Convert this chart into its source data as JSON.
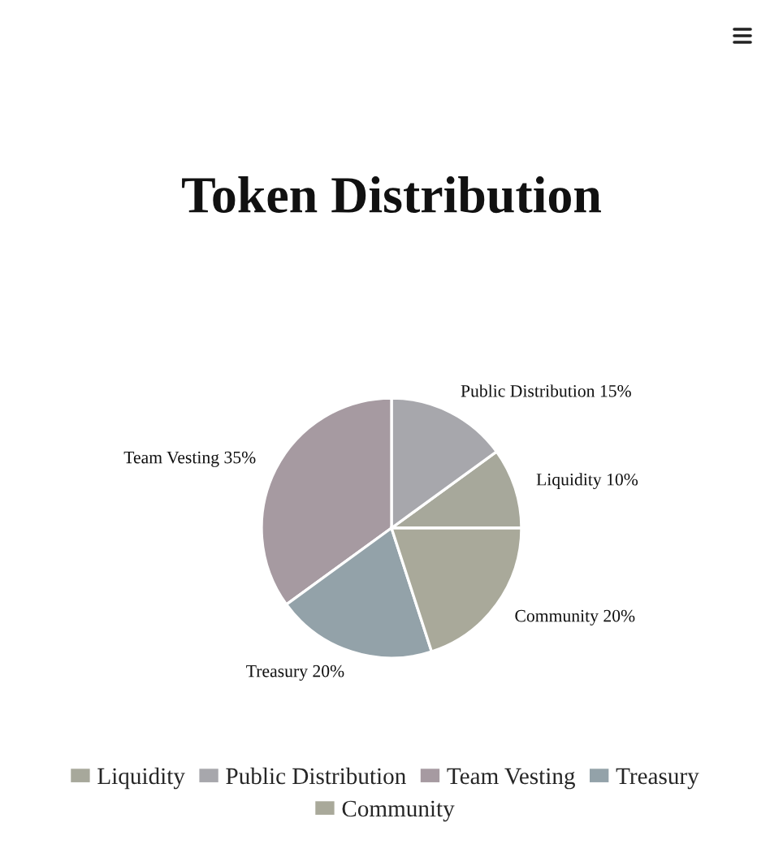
{
  "chart_data": {
    "type": "pie",
    "title": "Token Distribution",
    "categories": [
      "Liquidity",
      "Public Distribution",
      "Team Vesting",
      "Treasury",
      "Community"
    ],
    "values": [
      10,
      15,
      35,
      20,
      20
    ],
    "colors": [
      "#a7a89b",
      "#a7a7ac",
      "#a69aa1",
      "#93a2a9",
      "#a9a99a"
    ],
    "value_labels": [
      "Liquidity 10%",
      "Public Distribution 15%",
      "Team Vesting 35%",
      "Treasury 20%",
      "Community 20%"
    ],
    "legend": "bottom"
  }
}
